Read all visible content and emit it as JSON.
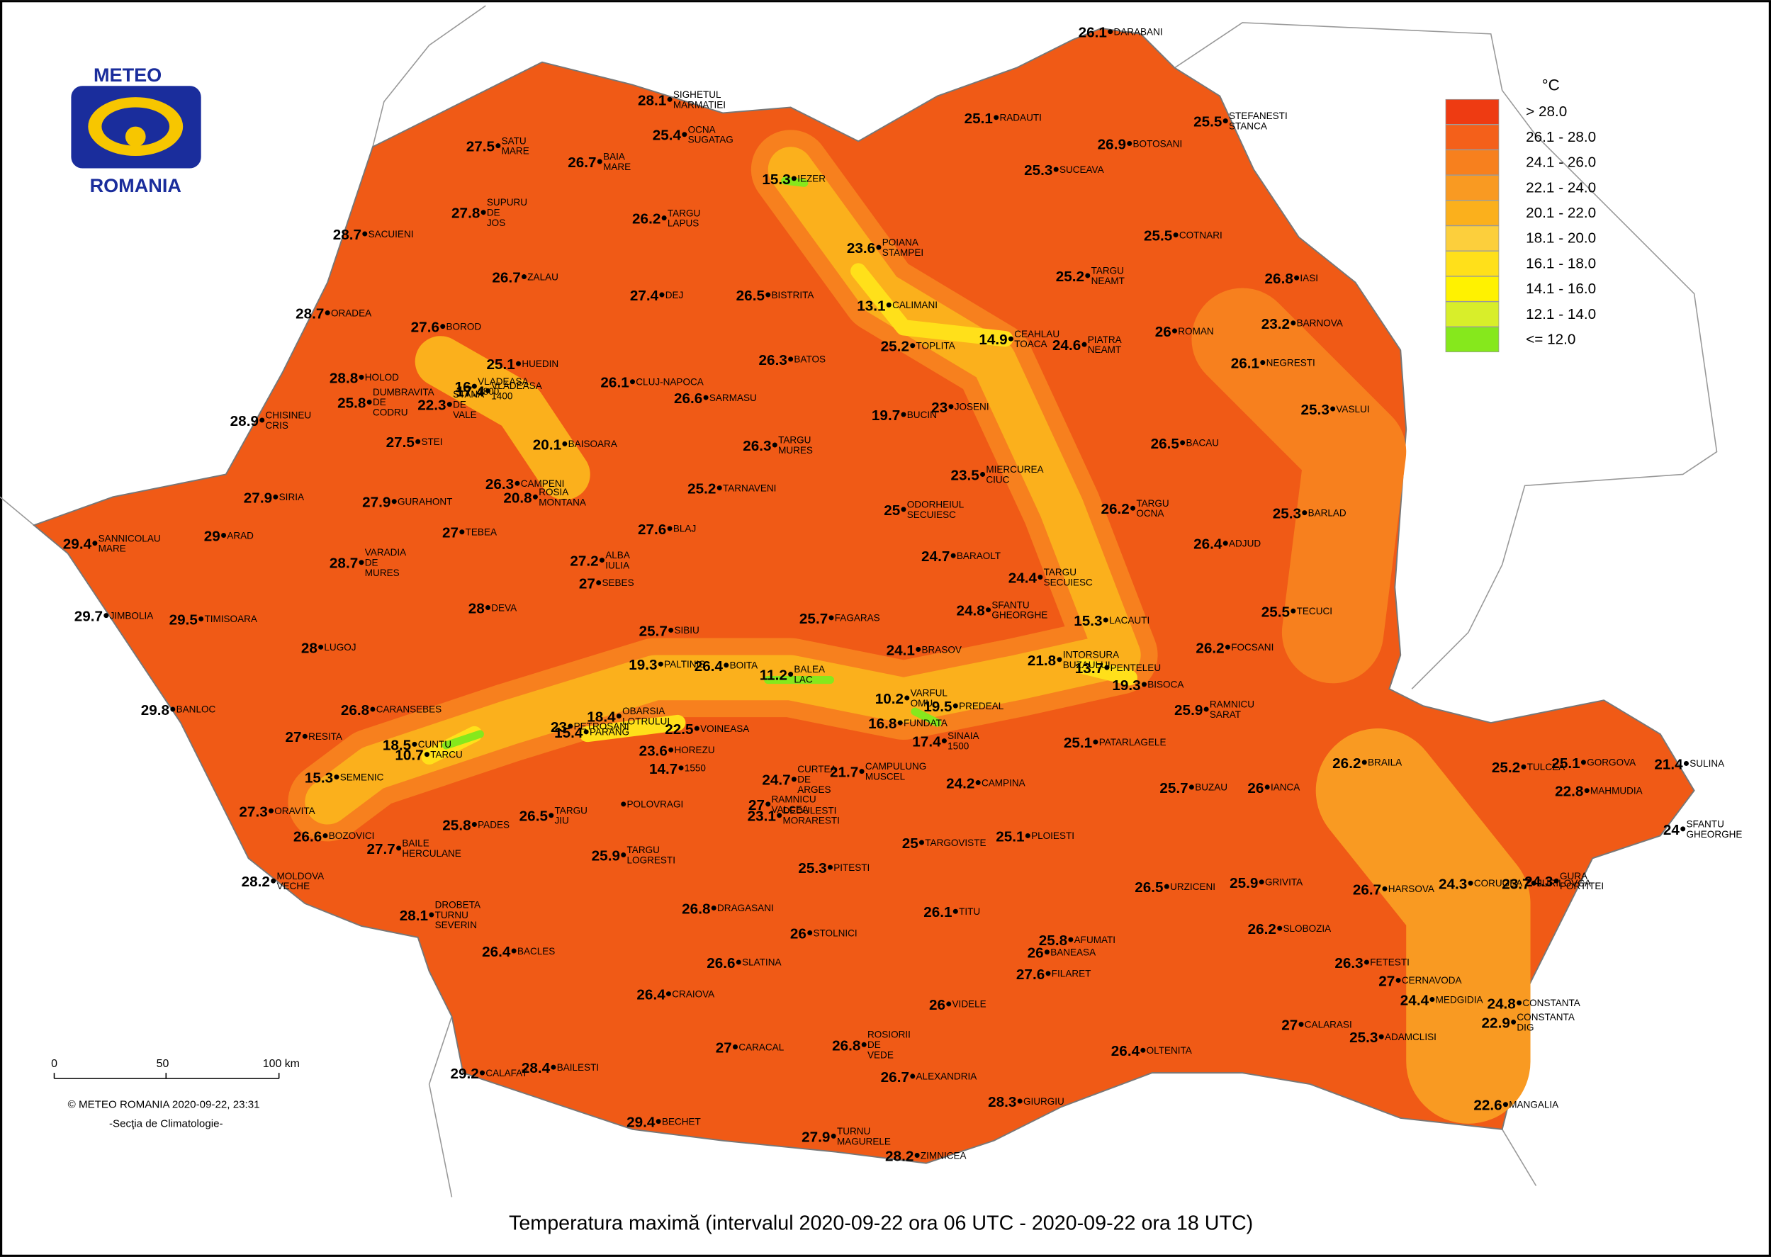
{
  "logo": {
    "top": "METEO",
    "bottom": "ROMANIA"
  },
  "legend": {
    "unit": "°C",
    "classes": [
      {
        "label": "> 28.0",
        "color": "#ee3b12"
      },
      {
        "label": "26.1 - 28.0",
        "color": "#f4601a"
      },
      {
        "label": "24.1 - 26.0",
        "color": "#f7801e"
      },
      {
        "label": "22.1 - 24.0",
        "color": "#f99a22"
      },
      {
        "label": "20.1 - 22.0",
        "color": "#fbb01c"
      },
      {
        "label": "18.1 - 20.0",
        "color": "#fccf3c"
      },
      {
        "label": "16.1 - 18.0",
        "color": "#ffe01a"
      },
      {
        "label": "14.1 - 16.0",
        "color": "#fff200"
      },
      {
        "label": "12.1 - 14.0",
        "color": "#d8ee2a"
      },
      {
        "label": "<= 12.0",
        "color": "#86e81c"
      }
    ]
  },
  "stations": [
    {
      "name": [
        "DARABANI"
      ],
      "value": 26.1
    },
    {
      "name": [
        "SIGHETUL",
        "MARMATIEI"
      ],
      "value": 28.1
    },
    {
      "name": [
        "OCNA",
        "SUGATAG"
      ],
      "value": 25.4
    },
    {
      "name": [
        "STEFANESTI",
        "STANCA"
      ],
      "value": 25.5
    },
    {
      "name": [
        "RADAUTI"
      ],
      "value": 25.1
    },
    {
      "name": [
        "SATU",
        "MARE"
      ],
      "value": 27.5
    },
    {
      "name": [
        "BAIA",
        "MARE"
      ],
      "value": 26.7
    },
    {
      "name": [
        "IEZER"
      ],
      "value": 15.3
    },
    {
      "name": [
        "BOTOSANI"
      ],
      "value": 26.9
    },
    {
      "name": [
        "SUCEAVA"
      ],
      "value": 25.3
    },
    {
      "name": [
        "SUPURU",
        "DE",
        "JOS"
      ],
      "value": 27.8
    },
    {
      "name": [
        "TARGU",
        "LAPUS"
      ],
      "value": 26.2
    },
    {
      "name": [
        "SACUIENI"
      ],
      "value": 28.7
    },
    {
      "name": [
        "COTNARI"
      ],
      "value": 25.5
    },
    {
      "name": [
        "POIANA",
        "STAMPEI"
      ],
      "value": 23.6
    },
    {
      "name": [
        "ZALAU"
      ],
      "value": 26.7
    },
    {
      "name": [
        "TARGU",
        "NEAMT"
      ],
      "value": 25.2
    },
    {
      "name": [
        "IASI"
      ],
      "value": 26.8
    },
    {
      "name": [
        "DEJ"
      ],
      "value": 27.4
    },
    {
      "name": [
        "BISTRITA"
      ],
      "value": 26.5
    },
    {
      "name": [
        "ORADEA"
      ],
      "value": 28.7
    },
    {
      "name": [
        "CALIMANI"
      ],
      "value": 13.1
    },
    {
      "name": [
        "BARNOVA"
      ],
      "value": 23.2
    },
    {
      "name": [
        "BOROD"
      ],
      "value": 27.6
    },
    {
      "name": [
        "CEAHLAU",
        "TOACA"
      ],
      "value": 14.9
    },
    {
      "name": [
        "ROMAN"
      ],
      "value": 26
    },
    {
      "name": [
        "PIATRA",
        "NEAMT"
      ],
      "value": 24.6
    },
    {
      "name": [
        "VLADEASA",
        "1800"
      ],
      "value": 16
    },
    {
      "name": [
        "HUEDIN"
      ],
      "value": 25.1
    },
    {
      "name": [
        "TOPLITA"
      ],
      "value": 25.2
    },
    {
      "name": [
        "BATOS"
      ],
      "value": 26.3
    },
    {
      "name": [
        "NEGRESTI"
      ],
      "value": 26.1
    },
    {
      "name": [
        "HOLOD"
      ],
      "value": 28.8
    },
    {
      "name": [
        "VLADEASA",
        "1400"
      ],
      "value": 17.4
    },
    {
      "name": [
        "CLUJ-NAPOCA"
      ],
      "value": 26.1
    },
    {
      "name": [
        "SARMASU"
      ],
      "value": 26.6
    },
    {
      "name": [
        "JOSENI"
      ],
      "value": 23
    },
    {
      "name": [
        "STANA",
        "DE",
        "VALE"
      ],
      "value": 22.3
    },
    {
      "name": [
        "CHISINEU",
        "CRIS"
      ],
      "value": 28.9
    },
    {
      "name": [
        "DUMBRAVITA",
        "DE",
        "CODRU"
      ],
      "value": 25.8
    },
    {
      "name": [
        "BUCIN"
      ],
      "value": 19.7
    },
    {
      "name": [
        "VASLUI"
      ],
      "value": 25.3
    },
    {
      "name": [
        "STEI"
      ],
      "value": 27.5
    },
    {
      "name": [
        "BAISOARA"
      ],
      "value": 20.1
    },
    {
      "name": [
        "TARGU",
        "MURES"
      ],
      "value": 26.3
    },
    {
      "name": [
        "BACAU"
      ],
      "value": 26.5
    },
    {
      "name": [
        "MIERCUREA",
        "CIUC"
      ],
      "value": 23.5
    },
    {
      "name": [
        "CAMPENI"
      ],
      "value": 26.3
    },
    {
      "name": [
        "ROSIA",
        "MONTANA"
      ],
      "value": 20.8
    },
    {
      "name": [
        "SIRIA"
      ],
      "value": 27.9
    },
    {
      "name": [
        "GURAHONT"
      ],
      "value": 27.9
    },
    {
      "name": [
        "TARNAVENI"
      ],
      "value": 25.2
    },
    {
      "name": [
        "ODORHEIUL",
        "SECUIESC"
      ],
      "value": 25
    },
    {
      "name": [
        "TARGU",
        "OCNA"
      ],
      "value": 26.2
    },
    {
      "name": [
        "BARLAD"
      ],
      "value": 25.3
    },
    {
      "name": [
        "SANNICOLAU",
        "MARE"
      ],
      "value": 29.4
    },
    {
      "name": [
        "ARAD"
      ],
      "value": 29
    },
    {
      "name": [
        "TEBEA"
      ],
      "value": 27
    },
    {
      "name": [
        "BLAJ"
      ],
      "value": 27.6
    },
    {
      "name": [
        "VARADIA",
        "DE",
        "MURES"
      ],
      "value": 28.7
    },
    {
      "name": [
        "ALBA",
        "IULIA"
      ],
      "value": 27.2
    },
    {
      "name": [
        "BARAOLT"
      ],
      "value": 24.7
    },
    {
      "name": [
        "ADJUD"
      ],
      "value": 26.4
    },
    {
      "name": [
        "SEBES"
      ],
      "value": 27
    },
    {
      "name": [
        "TARGU",
        "SECUIESC"
      ],
      "value": 24.4
    },
    {
      "name": [
        "JIMBOLIA"
      ],
      "value": 29.7
    },
    {
      "name": [
        "TIMISOARA"
      ],
      "value": 29.5
    },
    {
      "name": [
        "DEVA"
      ],
      "value": 28
    },
    {
      "name": [
        "SFANTU",
        "GHEORGHE"
      ],
      "value": 24.8
    },
    {
      "name": [
        "TECUCI"
      ],
      "value": 25.5
    },
    {
      "name": [
        "SIBIU"
      ],
      "value": 25.7
    },
    {
      "name": [
        "FAGARAS"
      ],
      "value": 25.7
    },
    {
      "name": [
        "LACAUTI"
      ],
      "value": 15.3
    },
    {
      "name": [
        "LUGOJ"
      ],
      "value": 28
    },
    {
      "name": [
        "BRASOV"
      ],
      "value": 24.1
    },
    {
      "name": [
        "INTORSURA",
        "BUZAULUI"
      ],
      "value": 21.8
    },
    {
      "name": [
        "FOCSANI"
      ],
      "value": 26.2
    },
    {
      "name": [
        "PALTINIS"
      ],
      "value": 19.3
    },
    {
      "name": [
        "BOITA"
      ],
      "value": 26.4
    },
    {
      "name": [
        "BALEA",
        "LAC"
      ],
      "value": 11.2
    },
    {
      "name": [
        "PENTELEU"
      ],
      "value": 13.7
    },
    {
      "name": [
        "BISOCA"
      ],
      "value": 19.3
    },
    {
      "name": [
        "VARFUL",
        "OMU"
      ],
      "value": 10.2
    },
    {
      "name": [
        "PREDEAL"
      ],
      "value": 19.5
    },
    {
      "name": [
        "BANLOC"
      ],
      "value": 29.8
    },
    {
      "name": [
        "CARANSEBES"
      ],
      "value": 26.8
    },
    {
      "name": [
        "PETROSANI"
      ],
      "value": 23
    },
    {
      "name": [
        "OBARSIA",
        "LOTRULUI"
      ],
      "value": 18.4
    },
    {
      "name": [
        "PARANG"
      ],
      "value": 15.4
    },
    {
      "name": [
        "VOINEASA"
      ],
      "value": 22.5
    },
    {
      "name": [
        "FUNDATA"
      ],
      "value": 16.8
    },
    {
      "name": [
        "CUNTU"
      ],
      "value": 18.5
    },
    {
      "name": [
        "TARCU"
      ],
      "value": 10.7
    },
    {
      "name": [
        "SINAIA",
        "1500"
      ],
      "value": 17.4
    },
    {
      "name": [
        "RAMNICU",
        "SARAT"
      ],
      "value": 25.9
    },
    {
      "name": [
        "RESITA"
      ],
      "value": 27
    },
    {
      "name": [
        "PATARLAGELE"
      ],
      "value": 25.1
    },
    {
      "name": [
        "SEMENIC"
      ],
      "value": 15.3
    },
    {
      "name": [
        "1550"
      ],
      "value": 14.7
    },
    {
      "name": [
        "HOREZU"
      ],
      "value": 23.6
    },
    {
      "name": [
        "CURTEA",
        "DE",
        "ARGES"
      ],
      "value": 24.7
    },
    {
      "name": [
        "CAMPULUNG",
        "MUSCEL"
      ],
      "value": 21.7
    },
    {
      "name": [
        "CAMPINA"
      ],
      "value": 24.2
    },
    {
      "name": [
        "BUZAU"
      ],
      "value": 25.7
    },
    {
      "name": [
        "IANCA"
      ],
      "value": 26
    },
    {
      "name": [
        "BRAILA"
      ],
      "value": 26.2
    },
    {
      "name": [
        "TULCEA"
      ],
      "value": 25.2
    },
    {
      "name": [
        "GORGOVA"
      ],
      "value": 25.1
    },
    {
      "name": [
        "SULINA"
      ],
      "value": 21.4
    },
    {
      "name": [
        "MAHMUDIA"
      ],
      "value": 22.8
    },
    {
      "name": [
        "ORAVITA"
      ],
      "value": 27.3
    },
    {
      "name": [
        "RAMNICU",
        "VALCEA"
      ],
      "value": 27
    },
    {
      "name": [
        "TARGU",
        "JIU"
      ],
      "value": 26.5
    },
    {
      "name": [
        "POLOVRAGI"
      ]
    },
    {
      "name": [
        "PADES"
      ],
      "value": 25.8
    },
    {
      "name": [
        "BOZOVICI"
      ],
      "value": 26.6
    },
    {
      "name": [
        "BAILE",
        "HERCULANE"
      ],
      "value": 27.7
    },
    {
      "name": [
        "DEDULESTI",
        "MORARESTI"
      ],
      "value": 23.1
    },
    {
      "name": [
        "TARGOVISTE"
      ],
      "value": 25
    },
    {
      "name": [
        "PLOIESTI"
      ],
      "value": 25.1
    },
    {
      "name": [
        "SFANTU",
        "GHEORGHE"
      ],
      "value": 24
    },
    {
      "name": [
        "TARGU",
        "LOGRESTI"
      ],
      "value": 25.9
    },
    {
      "name": [
        "MOLDOVA",
        "VECHE"
      ],
      "value": 28.2
    },
    {
      "name": [
        "PITESTI"
      ],
      "value": 25.3
    },
    {
      "name": [
        "GRIVITA"
      ],
      "value": 25.9
    },
    {
      "name": [
        "JURILOVCA"
      ],
      "value": 23.7
    },
    {
      "name": [
        "HARSOVA"
      ],
      "value": 26.7
    },
    {
      "name": [
        "CORUGEA"
      ],
      "value": 24.3
    },
    {
      "name": [
        "GURA",
        "PORTITEI"
      ],
      "value": 24.3
    },
    {
      "name": [
        "URZICENI"
      ],
      "value": 26.5
    },
    {
      "name": [
        "DRAGASANI"
      ],
      "value": 26.8
    },
    {
      "name": [
        "DROBETA",
        "TURNU",
        "SEVERIN"
      ],
      "value": 28.1
    },
    {
      "name": [
        "TITU"
      ],
      "value": 26.1
    },
    {
      "name": [
        "STOLNICI"
      ],
      "value": 26
    },
    {
      "name": [
        "SLOBOZIA"
      ],
      "value": 26.2
    },
    {
      "name": [
        "AFUMATI"
      ],
      "value": 25.8
    },
    {
      "name": [
        "BACLES"
      ],
      "value": 26.4
    },
    {
      "name": [
        "BANEASA"
      ],
      "value": 26
    },
    {
      "name": [
        "SLATINA"
      ],
      "value": 26.6
    },
    {
      "name": [
        "FETESTI"
      ],
      "value": 26.3
    },
    {
      "name": [
        "FILARET"
      ],
      "value": 27.6
    },
    {
      "name": [
        "CERNAVODA"
      ],
      "value": 27
    },
    {
      "name": [
        "VIDELE"
      ],
      "value": 26
    },
    {
      "name": [
        "CRAIOVA"
      ],
      "value": 26.4
    },
    {
      "name": [
        "MEDGIDIA"
      ],
      "value": 24.4
    },
    {
      "name": [
        "CONSTANTA"
      ],
      "value": 24.8
    },
    {
      "name": [
        "CONSTANTA",
        "DIG"
      ],
      "value": 22.9
    },
    {
      "name": [
        "CALARASI"
      ],
      "value": 27
    },
    {
      "name": [
        "ROSIORII",
        "DE",
        "VEDE"
      ],
      "value": 26.8
    },
    {
      "name": [
        "CARACAL"
      ],
      "value": 27
    },
    {
      "name": [
        "ADAMCLISI"
      ],
      "value": 25.3
    },
    {
      "name": [
        "OLTENITA"
      ],
      "value": 26.4
    },
    {
      "name": [
        "CALAFAT"
      ],
      "value": 29.2
    },
    {
      "name": [
        "BAILESTI"
      ],
      "value": 28.4
    },
    {
      "name": [
        "ALEXANDRIA"
      ],
      "value": 26.7
    },
    {
      "name": [
        "GIURGIU"
      ],
      "value": 28.3
    },
    {
      "name": [
        "MANGALIA"
      ],
      "value": 22.6
    },
    {
      "name": [
        "BECHET"
      ],
      "value": 29.4
    },
    {
      "name": [
        "TURNU",
        "MAGURELE"
      ],
      "value": 27.9
    },
    {
      "name": [
        "ZIMNICEA"
      ],
      "value": 28.2
    }
  ],
  "scale_bar": {
    "ticks": [
      "0",
      "50",
      "100 km"
    ]
  },
  "credit": "© METEO ROMANIA 2020-09-22, 23:31",
  "department": "-Secţia de Climatologie-",
  "title": "Temperatura maximă (intervalul 2020-09-22 ora 06 UTC - 2020-09-22 ora 18 UTC)"
}
